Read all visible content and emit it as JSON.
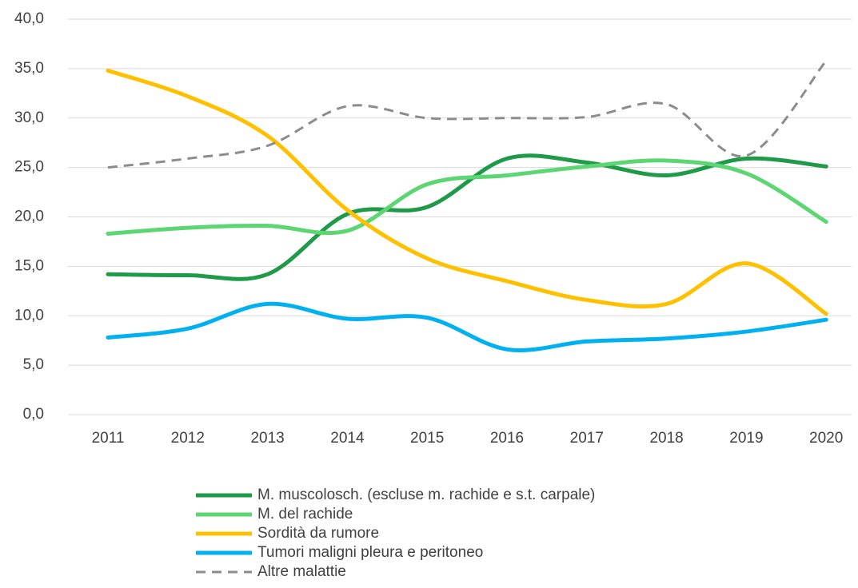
{
  "chart_data": {
    "type": "line",
    "smooth": true,
    "grid": true,
    "legend": "bottom",
    "categories": [
      "2011",
      "2012",
      "2013",
      "2014",
      "2015",
      "2016",
      "2017",
      "2018",
      "2019",
      "2020"
    ],
    "ylim": [
      0,
      40
    ],
    "yticks": [
      {
        "value": 0,
        "label": "0,0"
      },
      {
        "value": 5,
        "label": "5,0"
      },
      {
        "value": 10,
        "label": "10,0"
      },
      {
        "value": 15,
        "label": "15,0"
      },
      {
        "value": 20,
        "label": "20,0"
      },
      {
        "value": 25,
        "label": "25,0"
      },
      {
        "value": 30,
        "label": "30,0"
      },
      {
        "value": 35,
        "label": "35,0"
      },
      {
        "value": 40,
        "label": "40,0"
      }
    ],
    "series": [
      {
        "name": "M. muscolosch. (escluse m. rachide e s.t. carpale)",
        "color": "#1e9a48",
        "dashed": false,
        "values": [
          14.2,
          14.1,
          14.2,
          20.3,
          21.0,
          25.9,
          25.5,
          24.2,
          25.9,
          25.1
        ]
      },
      {
        "name": "M. del rachide",
        "color": "#5cd672",
        "dashed": false,
        "values": [
          18.3,
          18.9,
          19.1,
          18.6,
          23.3,
          24.2,
          25.1,
          25.7,
          24.4,
          19.5
        ]
      },
      {
        "name": "Sordità da rumore",
        "color": "#ffc000",
        "dashed": false,
        "values": [
          34.8,
          32.2,
          28.2,
          20.7,
          15.8,
          13.5,
          11.6,
          11.2,
          15.3,
          10.2
        ]
      },
      {
        "name": "Tumori maligni pleura e peritoneo",
        "color": "#00b0f0",
        "dashed": false,
        "values": [
          7.8,
          8.7,
          11.2,
          9.7,
          9.8,
          6.6,
          7.4,
          7.7,
          8.4,
          9.6
        ]
      },
      {
        "name": "Altre malattie",
        "color": "#8c8c8c",
        "dashed": true,
        "values": [
          25.0,
          25.9,
          27.2,
          31.2,
          30.0,
          30.0,
          30.1,
          31.4,
          26.2,
          35.8
        ]
      }
    ]
  }
}
